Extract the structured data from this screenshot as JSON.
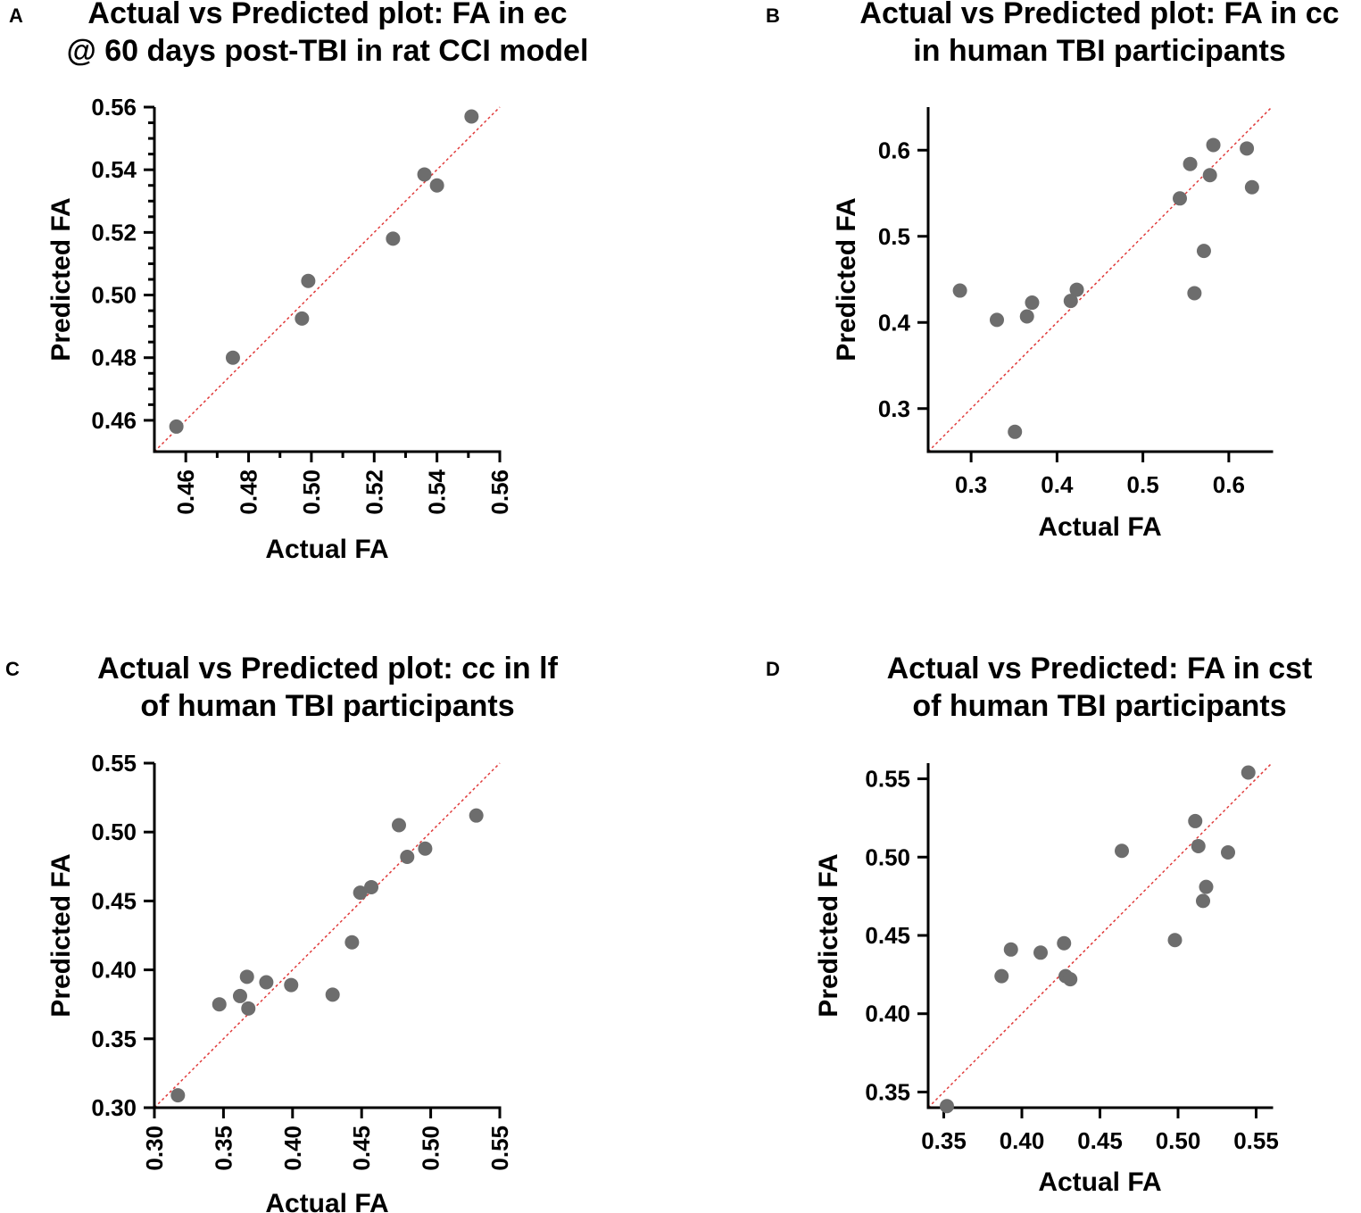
{
  "chart_data": [
    {
      "panel": "A",
      "type": "scatter",
      "title": [
        "Actual vs Predicted plot: FA in ec",
        "@ 60 days post-TBI in rat CCI model"
      ],
      "xlabel": "Actual FA",
      "ylabel": "Predicted FA",
      "xlim": [
        0.45,
        0.56
      ],
      "ylim": [
        0.45,
        0.56
      ],
      "xticks": [
        0.46,
        0.48,
        0.5,
        0.52,
        0.54,
        0.56
      ],
      "xtick_labels": [
        "0.46",
        "0.48",
        "0.50",
        "0.52",
        "0.54",
        "0.56"
      ],
      "yticks": [
        0.46,
        0.48,
        0.5,
        0.52,
        0.54,
        0.56
      ],
      "ytick_labels": [
        "0.46",
        "0.48",
        "0.50",
        "0.52",
        "0.54",
        "0.56"
      ],
      "x_minor_ticks": [
        0.47,
        0.49,
        0.51,
        0.53,
        0.55
      ],
      "y_minor_ticks": [
        0.465,
        0.47,
        0.475,
        0.485,
        0.49,
        0.495,
        0.505,
        0.51,
        0.515,
        0.525,
        0.53,
        0.535,
        0.545,
        0.55,
        0.555
      ],
      "x_tick_rotation": -90,
      "identity_line": true,
      "points": [
        {
          "x": 0.457,
          "y": 0.458
        },
        {
          "x": 0.475,
          "y": 0.48
        },
        {
          "x": 0.497,
          "y": 0.4925
        },
        {
          "x": 0.499,
          "y": 0.5045
        },
        {
          "x": 0.526,
          "y": 0.518
        },
        {
          "x": 0.536,
          "y": 0.5385
        },
        {
          "x": 0.54,
          "y": 0.535
        },
        {
          "x": 0.551,
          "y": 0.557
        }
      ]
    },
    {
      "panel": "B",
      "type": "scatter",
      "title": [
        "Actual vs Predicted plot: FA in cc",
        "in human TBI participants"
      ],
      "xlabel": "Actual FA",
      "ylabel": "Predicted FA",
      "xlim": [
        0.25,
        0.65
      ],
      "ylim": [
        0.25,
        0.65
      ],
      "xticks": [
        0.3,
        0.4,
        0.5,
        0.6
      ],
      "xtick_labels": [
        "0.3",
        "0.4",
        "0.5",
        "0.6"
      ],
      "yticks": [
        0.3,
        0.4,
        0.5,
        0.6
      ],
      "ytick_labels": [
        "0.3",
        "0.4",
        "0.5",
        "0.6"
      ],
      "x_minor_ticks": [],
      "y_minor_ticks": [],
      "x_tick_rotation": 0,
      "identity_line": true,
      "points": [
        {
          "x": 0.287,
          "y": 0.437
        },
        {
          "x": 0.33,
          "y": 0.403
        },
        {
          "x": 0.351,
          "y": 0.273
        },
        {
          "x": 0.365,
          "y": 0.407
        },
        {
          "x": 0.371,
          "y": 0.423
        },
        {
          "x": 0.416,
          "y": 0.425
        },
        {
          "x": 0.423,
          "y": 0.438
        },
        {
          "x": 0.543,
          "y": 0.544
        },
        {
          "x": 0.555,
          "y": 0.584
        },
        {
          "x": 0.56,
          "y": 0.434
        },
        {
          "x": 0.571,
          "y": 0.483
        },
        {
          "x": 0.578,
          "y": 0.571
        },
        {
          "x": 0.582,
          "y": 0.606
        },
        {
          "x": 0.621,
          "y": 0.602
        },
        {
          "x": 0.627,
          "y": 0.557
        }
      ]
    },
    {
      "panel": "C",
      "type": "scatter",
      "title": [
        "Actual vs Predicted plot: cc in lf",
        "of human TBI participants"
      ],
      "xlabel": "Actual FA",
      "ylabel": "Predicted FA",
      "xlim": [
        0.3,
        0.55
      ],
      "ylim": [
        0.3,
        0.55
      ],
      "xticks": [
        0.3,
        0.35,
        0.4,
        0.45,
        0.5,
        0.55
      ],
      "xtick_labels": [
        "0.30",
        "0.35",
        "0.40",
        "0.45",
        "0.50",
        "0.55"
      ],
      "yticks": [
        0.3,
        0.35,
        0.4,
        0.45,
        0.5,
        0.55
      ],
      "ytick_labels": [
        "0.30",
        "0.35",
        "0.40",
        "0.45",
        "0.50",
        "0.55"
      ],
      "x_minor_ticks": [],
      "y_minor_ticks": [],
      "x_tick_rotation": -90,
      "identity_line": true,
      "points": [
        {
          "x": 0.317,
          "y": 0.309
        },
        {
          "x": 0.347,
          "y": 0.375
        },
        {
          "x": 0.362,
          "y": 0.381
        },
        {
          "x": 0.367,
          "y": 0.395
        },
        {
          "x": 0.368,
          "y": 0.372
        },
        {
          "x": 0.381,
          "y": 0.391
        },
        {
          "x": 0.399,
          "y": 0.389
        },
        {
          "x": 0.429,
          "y": 0.382
        },
        {
          "x": 0.443,
          "y": 0.42
        },
        {
          "x": 0.449,
          "y": 0.456
        },
        {
          "x": 0.457,
          "y": 0.46
        },
        {
          "x": 0.477,
          "y": 0.505
        },
        {
          "x": 0.483,
          "y": 0.482
        },
        {
          "x": 0.496,
          "y": 0.488
        },
        {
          "x": 0.533,
          "y": 0.512
        }
      ]
    },
    {
      "panel": "D",
      "type": "scatter",
      "title": [
        "Actual vs Predicted: FA in cst",
        "of human TBI participants"
      ],
      "xlabel": "Actual FA",
      "ylabel": "Predicted FA",
      "xlim": [
        0.34,
        0.56
      ],
      "ylim": [
        0.34,
        0.56
      ],
      "xticks": [
        0.35,
        0.4,
        0.45,
        0.5,
        0.55
      ],
      "xtick_labels": [
        "0.35",
        "0.40",
        "0.45",
        "0.50",
        "0.55"
      ],
      "yticks": [
        0.35,
        0.4,
        0.45,
        0.5,
        0.55
      ],
      "ytick_labels": [
        "0.35",
        "0.40",
        "0.45",
        "0.50",
        "0.55"
      ],
      "x_minor_ticks": [],
      "y_minor_ticks": [],
      "x_tick_rotation": 0,
      "identity_line": true,
      "points": [
        {
          "x": 0.352,
          "y": 0.341
        },
        {
          "x": 0.387,
          "y": 0.424
        },
        {
          "x": 0.393,
          "y": 0.441
        },
        {
          "x": 0.412,
          "y": 0.439
        },
        {
          "x": 0.427,
          "y": 0.445
        },
        {
          "x": 0.428,
          "y": 0.424
        },
        {
          "x": 0.431,
          "y": 0.422
        },
        {
          "x": 0.464,
          "y": 0.504
        },
        {
          "x": 0.498,
          "y": 0.447
        },
        {
          "x": 0.511,
          "y": 0.523
        },
        {
          "x": 0.513,
          "y": 0.507
        },
        {
          "x": 0.516,
          "y": 0.472
        },
        {
          "x": 0.518,
          "y": 0.481
        },
        {
          "x": 0.532,
          "y": 0.503
        },
        {
          "x": 0.545,
          "y": 0.554
        }
      ]
    }
  ]
}
